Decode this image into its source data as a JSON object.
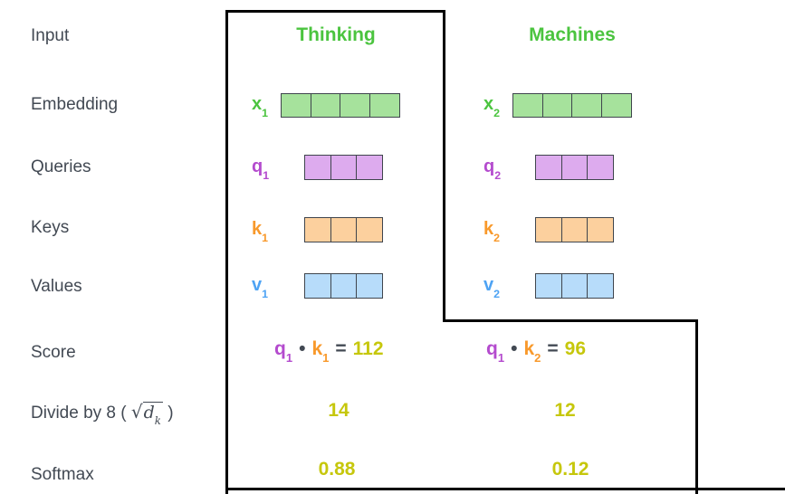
{
  "colors": {
    "green": "#4bc43f",
    "green_fill": "#a6e29c",
    "purple": "#b44bce",
    "purple_fill": "#ddabee",
    "orange": "#f8992b",
    "orange_fill": "#fcd09e",
    "blue": "#4ea3f4",
    "blue_fill": "#b7dcfa",
    "yellow": "#c6c70c",
    "dark_text": "#424953",
    "cell_border": "#3f454d",
    "line_black": "#000000"
  },
  "words": {
    "col1": "Thinking",
    "col2": "Machines"
  },
  "side_labels": {
    "input": "Input",
    "embedding": "Embedding",
    "queries": "Queries",
    "keys": "Keys",
    "values": "Values",
    "score": "Score",
    "divide_prefix": "Divide by 8 ( ",
    "divide_sqrt": "√",
    "divide_radicand": "d",
    "divide_radicand_sub": "k",
    "divide_suffix": " )",
    "softmax": "Softmax"
  },
  "vectors": {
    "x1": {
      "base": "x",
      "sub": "1",
      "cells": 4,
      "color": "green"
    },
    "x2": {
      "base": "x",
      "sub": "2",
      "cells": 4,
      "color": "green"
    },
    "q1": {
      "base": "q",
      "sub": "1",
      "cells": 3,
      "color": "purple"
    },
    "q2": {
      "base": "q",
      "sub": "2",
      "cells": 3,
      "color": "purple"
    },
    "k1": {
      "base": "k",
      "sub": "1",
      "cells": 3,
      "color": "orange"
    },
    "k2": {
      "base": "k",
      "sub": "2",
      "cells": 3,
      "color": "orange"
    },
    "v1": {
      "base": "v",
      "sub": "1",
      "cells": 3,
      "color": "blue"
    },
    "v2": {
      "base": "v",
      "sub": "2",
      "cells": 3,
      "color": "blue"
    }
  },
  "scores": {
    "col1": {
      "q_base": "q",
      "q_sub": "1",
      "dot": "•",
      "k_base": "k",
      "k_sub": "1",
      "equals": "=",
      "value": "112"
    },
    "col2": {
      "q_base": "q",
      "q_sub": "1",
      "dot": "•",
      "k_base": "k",
      "k_sub": "2",
      "equals": "=",
      "value": "96"
    }
  },
  "divide": {
    "col1": "14",
    "col2": "12"
  },
  "softmax": {
    "col1": "0.88",
    "col2": "0.12"
  }
}
